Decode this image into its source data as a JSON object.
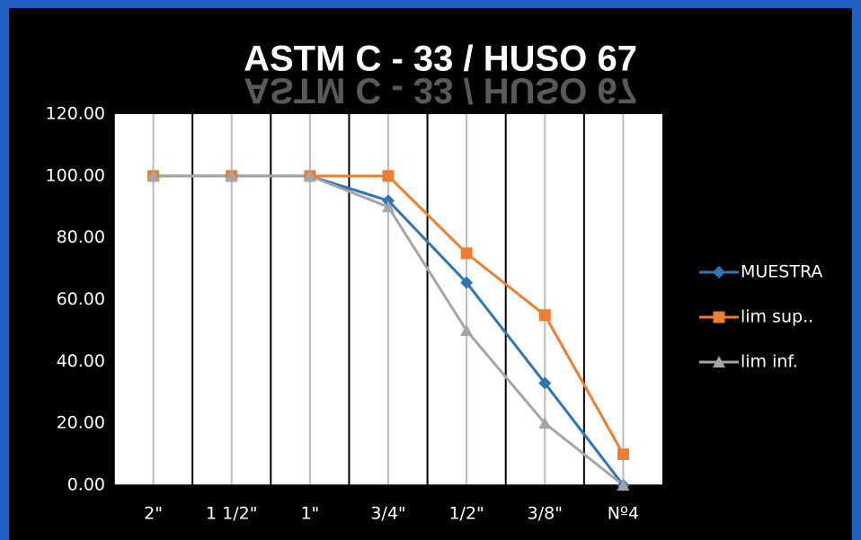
{
  "chart_data": {
    "type": "line",
    "title": "ASTM C - 33 / HUSO 67",
    "categories": [
      "2\"",
      "1 1/2\"",
      "1\"",
      "3/4\"",
      "1/2\"",
      "3/8\"",
      "Nº4"
    ],
    "series": [
      {
        "name": "MUESTRA",
        "color": "#2f75b5",
        "marker": "diamond",
        "values": [
          100,
          100,
          100,
          92,
          65.5,
          33,
          0
        ]
      },
      {
        "name": "lim sup..",
        "color": "#ed7d31",
        "marker": "square",
        "values": [
          100,
          100,
          100,
          100,
          75,
          55,
          10
        ]
      },
      {
        "name": "lim inf.",
        "color": "#a5a5a5",
        "marker": "triangle",
        "values": [
          100,
          100,
          100,
          90,
          50,
          20,
          0
        ]
      }
    ],
    "ylim": [
      0,
      120
    ],
    "yticks": [
      {
        "value": 0,
        "label": "0.00"
      },
      {
        "value": 20,
        "label": "20.00"
      },
      {
        "value": 40,
        "label": "40.00"
      },
      {
        "value": 60,
        "label": "60.00"
      },
      {
        "value": 80,
        "label": "80.00"
      },
      {
        "value": 100,
        "label": "100.00"
      },
      {
        "value": 120,
        "label": "120.00"
      }
    ],
    "grid": false,
    "legend": "right"
  }
}
